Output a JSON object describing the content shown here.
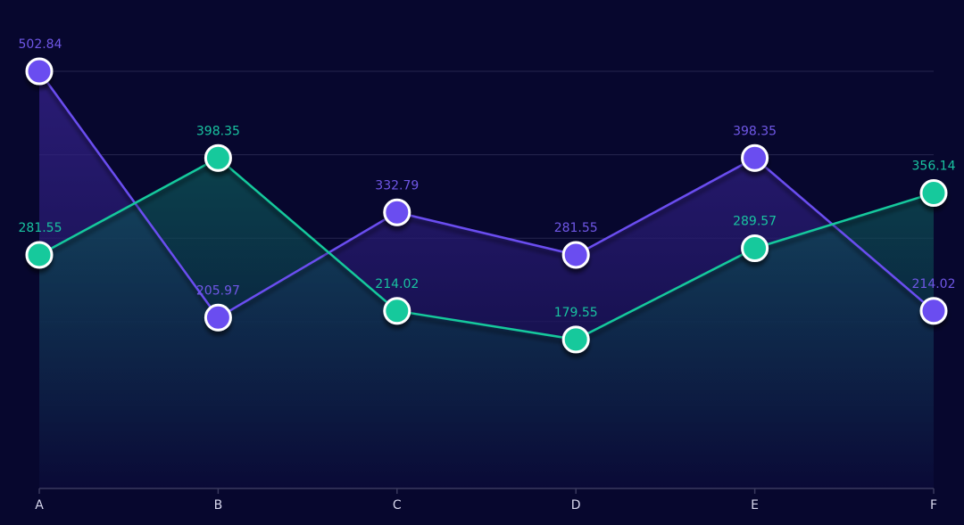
{
  "chart_data": {
    "type": "area",
    "categories": [
      "A",
      "B",
      "C",
      "D",
      "E",
      "F"
    ],
    "series": [
      {
        "values": [
          502.84,
          205.97,
          332.79,
          281.55,
          398.35,
          214.02
        ],
        "labels": [
          "502.84",
          "205.97",
          "332.79",
          "281.55",
          "398.35",
          "214.02"
        ],
        "color": "#6b4ef0",
        "label_color": "#6f57e6",
        "fill_top": "#3a2596",
        "fill_bottom": "#0b0b3a"
      },
      {
        "values": [
          281.55,
          398.35,
          214.02,
          179.55,
          289.57,
          356.14
        ],
        "labels": [
          "281.55",
          "398.35",
          "214.02",
          "179.55",
          "289.57",
          "356.14"
        ],
        "color": "#13c99c",
        "label_color": "#19c3a0",
        "fill_top": "#0d5c5a",
        "fill_bottom": "#0a0a36"
      }
    ],
    "ylim": [
      0,
      502.84
    ],
    "grid": true,
    "background": "#07072e",
    "axis_color": "#3a3a5e",
    "grid_color": "#26264e",
    "marker_stroke": "#ffffff"
  }
}
